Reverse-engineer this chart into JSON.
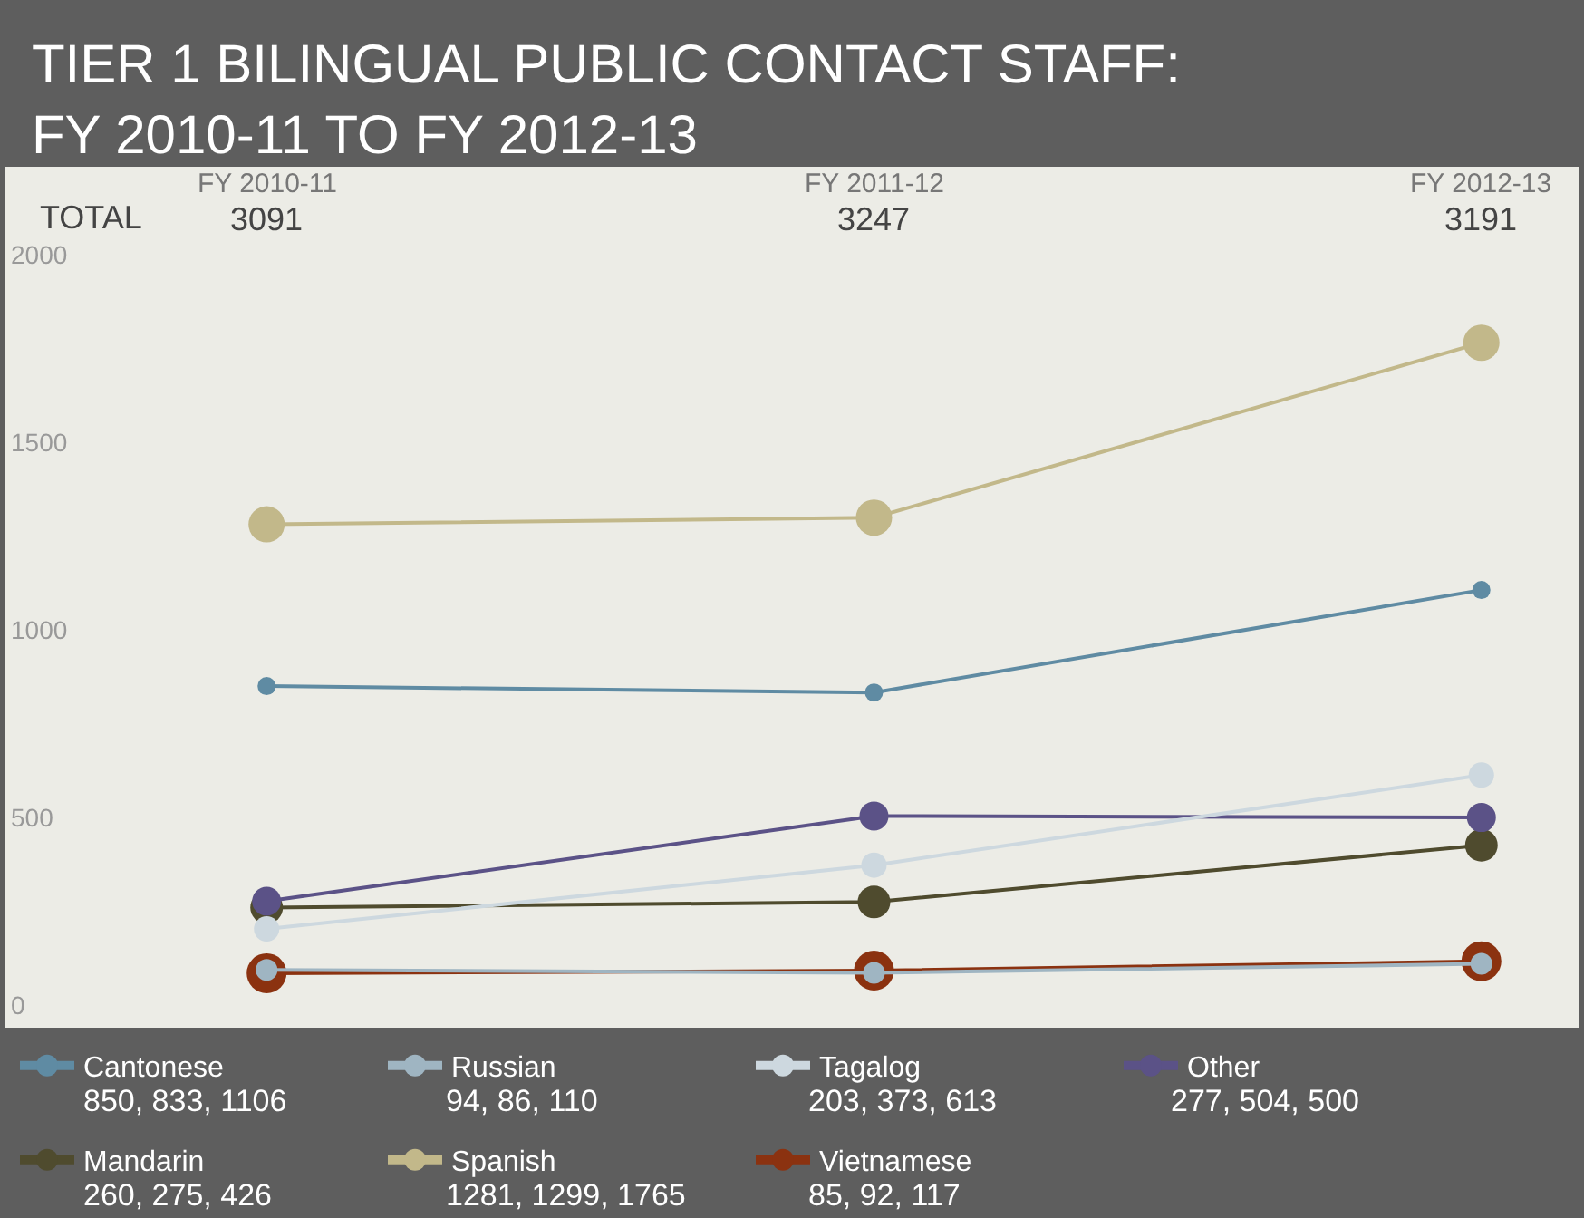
{
  "chart_data": {
    "type": "line",
    "title": "TIER 1 BILINGUAL PUBLIC CONTACT STAFF:\nFY 2010-11 TO FY 2012-13",
    "categories": [
      "FY 2010-11",
      "FY 2011-12",
      "FY 2012-13"
    ],
    "series": [
      {
        "name": "Cantonese",
        "color": "#5f8ba3",
        "values": [
          850,
          833,
          1106
        ]
      },
      {
        "name": "Russian",
        "color": "#9fb5c2",
        "values": [
          94,
          86,
          110
        ]
      },
      {
        "name": "Tagalog",
        "color": "#cdd8df",
        "values": [
          203,
          373,
          613
        ]
      },
      {
        "name": "Other",
        "color": "#5b5287",
        "values": [
          277,
          504,
          500
        ]
      },
      {
        "name": "Mandarin",
        "color": "#4f4b2e",
        "values": [
          260,
          275,
          426
        ]
      },
      {
        "name": "Spanish",
        "color": "#c2b88a",
        "values": [
          1281,
          1299,
          1765
        ]
      },
      {
        "name": "Vietnamese",
        "color": "#8b3210",
        "values": [
          85,
          92,
          117
        ]
      }
    ],
    "annotations": [
      "TOTAL",
      "3091",
      "3247",
      "3191",
      "850, 833, 1106",
      "94, 86, 110",
      "203, 373, 613",
      "277, 504, 500",
      "260, 275, 426",
      "1281, 1299, 1765",
      "85, 92, 117"
    ],
    "ylim": [
      -60,
      2060
    ],
    "yticks": [
      0,
      500,
      1000,
      1500,
      2000
    ],
    "marker": "circle",
    "line_style": "solid",
    "legend": "bottom",
    "grid": false
  }
}
